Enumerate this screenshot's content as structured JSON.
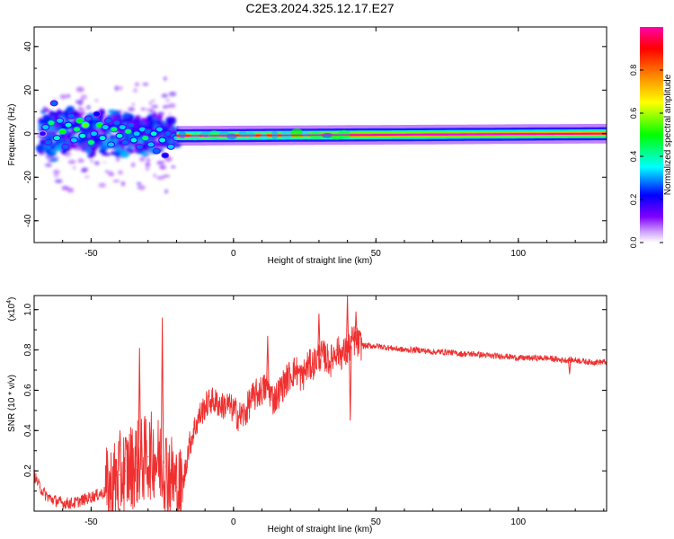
{
  "figure_title": "C2E3.2024.325.12.17.E27",
  "chart_data": [
    {
      "type": "heatmap",
      "title": "",
      "xlabel": "Height of straight line (km)",
      "ylabel": "Frequency (Hz)",
      "xlim": [
        -70,
        131
      ],
      "ylim": [
        -50,
        49
      ],
      "x_ticks": [
        "-50",
        "0",
        "50",
        "100"
      ],
      "x_tick_values": [
        -50,
        0,
        50,
        100
      ],
      "y_ticks": [
        "-40",
        "-20",
        "0",
        "20",
        "40"
      ],
      "y_tick_values": [
        -40,
        -20,
        0,
        20,
        40
      ],
      "colorbar": {
        "label": "Normalized spectral amplitude",
        "range": [
          0,
          1
        ],
        "ticks": [
          "0.0",
          "0.2",
          "0.4",
          "0.6",
          "0.8"
        ],
        "tick_values": [
          0.0,
          0.2,
          0.4,
          0.6,
          0.8
        ],
        "colormap": [
          "#ffffff",
          "#7f00ff",
          "#0000ff",
          "#00ffff",
          "#00ff00",
          "#ffff00",
          "#ff8000",
          "#ff0000",
          "#ff00ff"
        ]
      },
      "series": [
        {
          "points": [
            [
              -67,
              0,
              0.2
            ],
            [
              -66,
              3,
              0.35
            ],
            [
              -65,
              -4,
              0.3
            ],
            [
              -64,
              5,
              0.45
            ],
            [
              -63,
              14,
              0.3
            ],
            [
              -62,
              -2,
              0.4
            ],
            [
              -61,
              6,
              0.35
            ],
            [
              -60,
              1,
              0.5
            ],
            [
              -59,
              -6,
              0.3
            ],
            [
              -58,
              4,
              0.4
            ],
            [
              -57,
              8,
              0.3
            ],
            [
              -56,
              -3,
              0.35
            ],
            [
              -55,
              2,
              0.45
            ],
            [
              -54,
              6,
              0.5
            ],
            [
              -53,
              -1,
              0.4
            ],
            [
              -52,
              4,
              0.55
            ],
            [
              -51,
              7,
              0.3
            ],
            [
              -50,
              -4,
              0.45
            ],
            [
              -49,
              0,
              0.35
            ],
            [
              -48,
              9,
              0.25
            ],
            [
              -47,
              4,
              0.5
            ],
            [
              -46,
              -2,
              0.4
            ],
            [
              -45,
              3,
              0.35
            ],
            [
              -44,
              6,
              0.3
            ],
            [
              -43,
              -5,
              0.35
            ],
            [
              -42,
              2,
              0.45
            ],
            [
              -41,
              5,
              0.3
            ],
            [
              -40,
              -1,
              0.4
            ],
            [
              -39,
              3,
              0.35
            ],
            [
              -38,
              -4,
              0.3
            ],
            [
              -37,
              1,
              0.45
            ],
            [
              -36,
              4,
              0.3
            ],
            [
              -35,
              -3,
              0.4
            ],
            [
              -34,
              0,
              0.35
            ],
            [
              -33,
              -6,
              0.3
            ],
            [
              -32,
              2,
              0.35
            ],
            [
              -31,
              -2,
              0.45
            ],
            [
              -30,
              1,
              0.3
            ],
            [
              -29,
              -5,
              0.35
            ],
            [
              -28,
              0,
              0.4
            ],
            [
              -27,
              -8,
              0.3
            ],
            [
              -26,
              2,
              0.35
            ],
            [
              -25,
              -3,
              0.4
            ],
            [
              -24,
              -10,
              0.25
            ],
            [
              -23,
              0,
              0.3
            ],
            [
              -22,
              -6,
              0.35
            ],
            [
              -21,
              -1,
              0.3
            ],
            [
              -20,
              -2,
              0.35
            ]
          ]
        },
        {
          "name": "",
          "ridge_x": [
            -20,
            131
          ],
          "ridge_frequency": [
            -1,
            0
          ],
          "ridge_amplitude": [
            0.95,
            1.0
          ]
        }
      ]
    },
    {
      "type": "line",
      "title": "",
      "xlabel": "Height of straight line (km)",
      "ylabel": "SNR (10 * v/v)",
      "y_scale_label": "(x10",
      "y_scale_exponent": "4",
      "y_scale_close": ")",
      "xlim": [
        -70,
        131
      ],
      "ylim": [
        0,
        1.07
      ],
      "x_ticks": [
        "-50",
        "0",
        "50",
        "100"
      ],
      "x_tick_values": [
        -50,
        0,
        50,
        100
      ],
      "y_ticks": [
        "0.2",
        "0.4",
        "0.6",
        "0.8",
        "1.0"
      ],
      "y_tick_values": [
        0.2,
        0.4,
        0.6,
        0.8,
        1.0
      ],
      "series_color": "#f03030",
      "series": [
        {
          "x": [
            -70,
            -68,
            -66,
            -64,
            -62,
            -60,
            -58,
            -56,
            -54,
            -52,
            -50,
            -48,
            -46,
            -44,
            -42,
            -40,
            -38,
            -36,
            -34,
            -32,
            -30,
            -28,
            -26,
            -24,
            -22,
            -20,
            -18,
            -16,
            -14,
            -12,
            -10,
            -8,
            -6,
            -4,
            -2,
            0,
            2,
            4,
            6,
            8,
            10,
            12,
            14,
            16,
            18,
            20,
            22,
            24,
            26,
            28,
            30,
            32,
            34,
            36,
            38,
            40,
            42,
            44,
            46,
            48,
            50,
            55,
            60,
            65,
            70,
            75,
            80,
            85,
            90,
            95,
            100,
            105,
            110,
            115,
            120,
            125,
            131
          ],
          "values": [
            0.18,
            0.12,
            0.08,
            0.06,
            0.05,
            0.04,
            0.04,
            0.04,
            0.05,
            0.06,
            0.07,
            0.08,
            0.09,
            0.1,
            0.14,
            0.18,
            0.2,
            0.22,
            0.24,
            0.25,
            0.27,
            0.28,
            0.25,
            0.22,
            0.18,
            0.12,
            0.1,
            0.3,
            0.4,
            0.47,
            0.52,
            0.55,
            0.54,
            0.52,
            0.53,
            0.5,
            0.47,
            0.48,
            0.55,
            0.58,
            0.6,
            0.62,
            0.55,
            0.59,
            0.64,
            0.68,
            0.7,
            0.66,
            0.72,
            0.73,
            0.77,
            0.77,
            0.74,
            0.8,
            0.78,
            0.79,
            0.85,
            0.83,
            0.82,
            0.82,
            0.82,
            0.81,
            0.8,
            0.8,
            0.79,
            0.79,
            0.78,
            0.78,
            0.77,
            0.77,
            0.76,
            0.76,
            0.76,
            0.75,
            0.75,
            0.74,
            0.74
          ]
        }
      ],
      "annotations": [
        {
          "x": -25,
          "value": 0.96
        },
        {
          "x": -33,
          "value": 0.81
        },
        {
          "x": 40,
          "value": 1.07
        },
        {
          "x": 43,
          "value": 0.99
        },
        {
          "x": 30,
          "value": 0.98
        },
        {
          "x": 12,
          "value": 0.87
        },
        {
          "x": 41,
          "value": 0.45
        },
        {
          "x": 118,
          "value": 0.68
        }
      ]
    }
  ]
}
